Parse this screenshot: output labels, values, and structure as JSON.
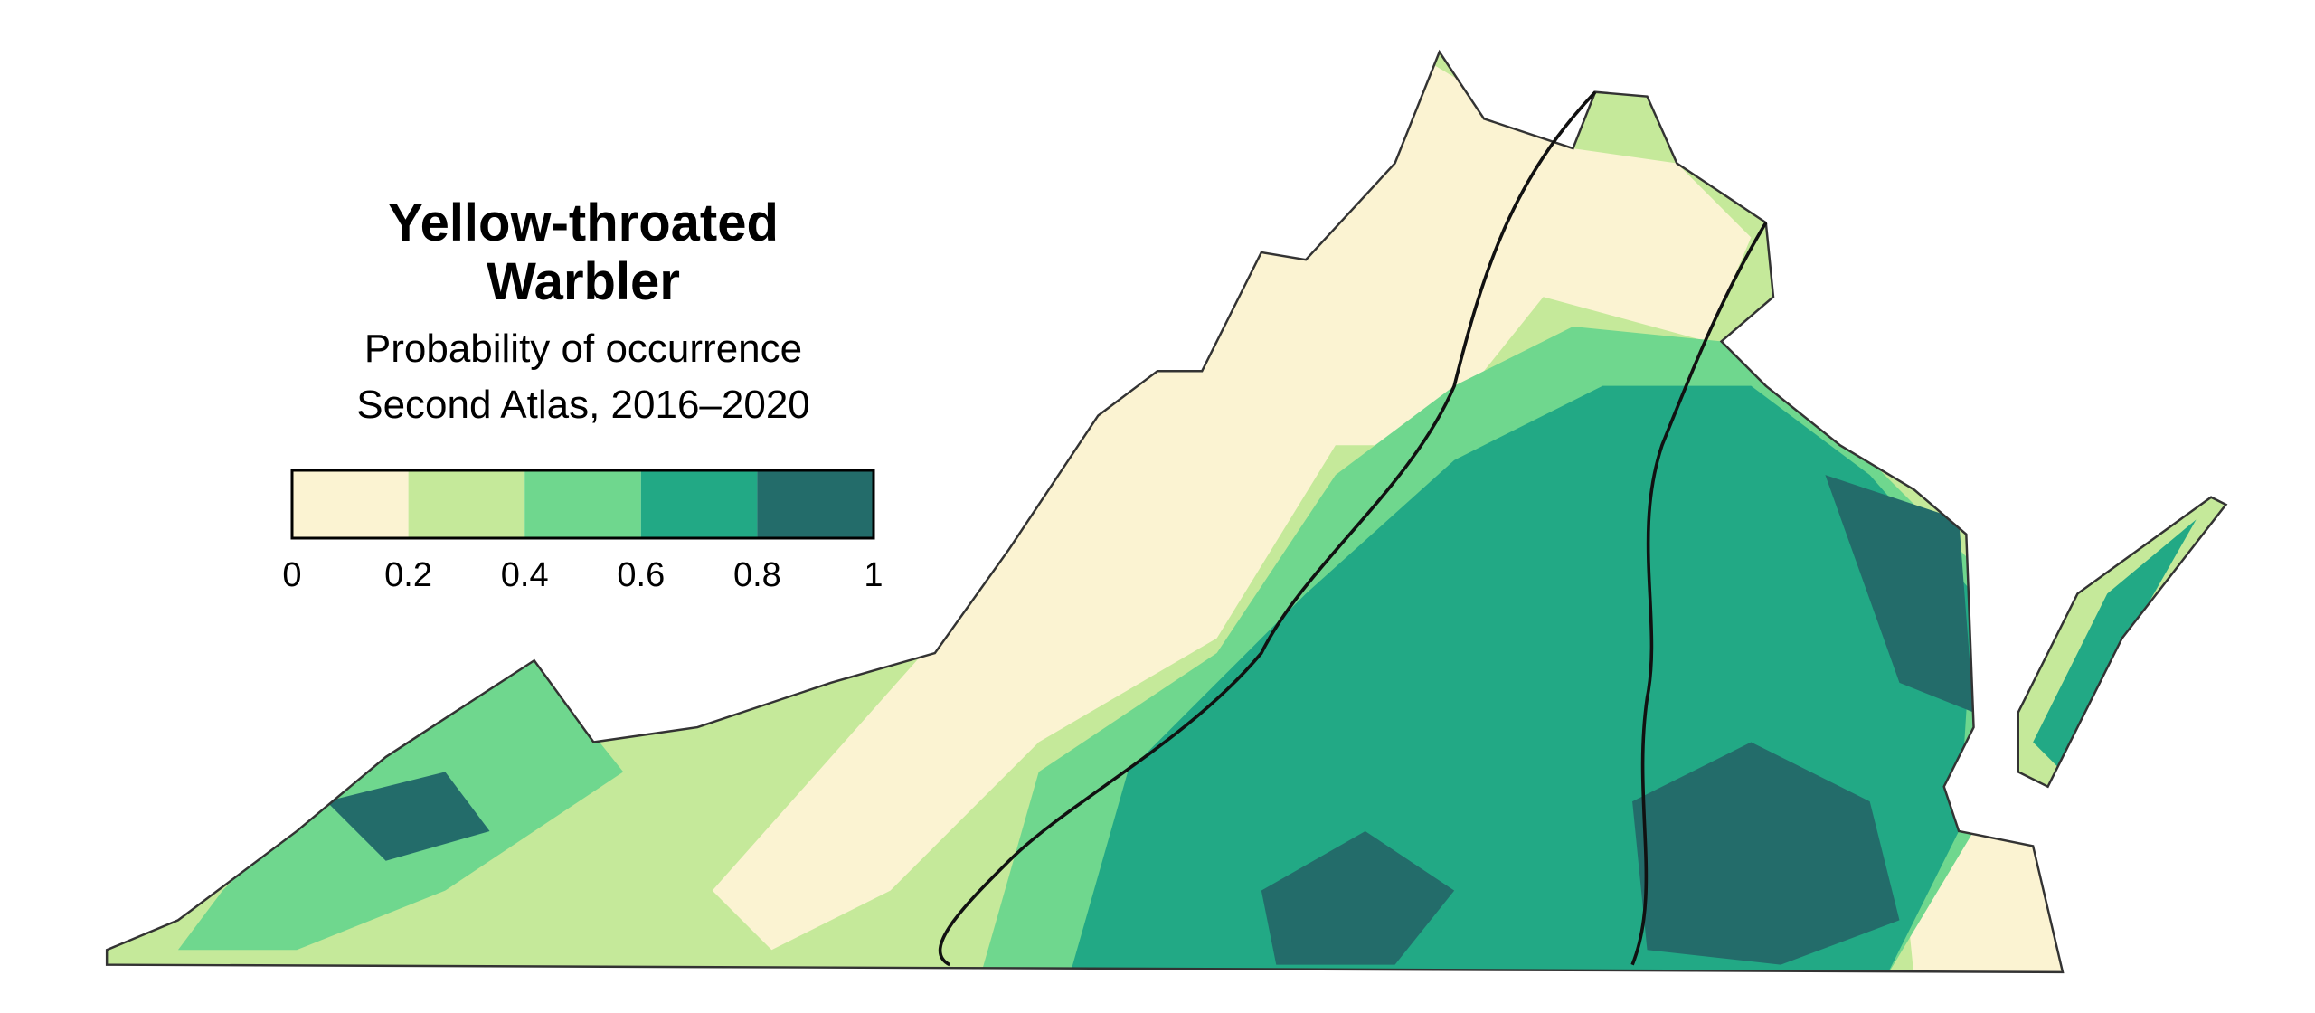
{
  "legend": {
    "title_lines": [
      "Yellow-throated",
      "Warbler"
    ],
    "subtitle": "Probability of occurrence",
    "period": "Second Atlas, 2016–2020",
    "colors": [
      "#fbf3d2",
      "#c5e99a",
      "#6fd78e",
      "#22a985",
      "#236c6a"
    ],
    "ticks": [
      0,
      0.2,
      0.4,
      0.6,
      0.8,
      1
    ]
  }
}
